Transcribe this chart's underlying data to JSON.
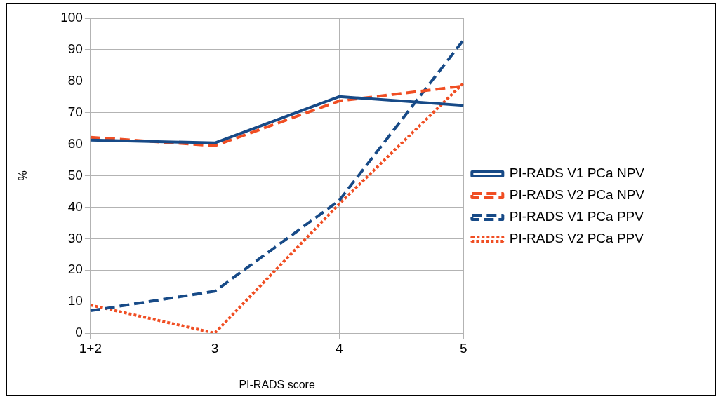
{
  "chart_data": {
    "type": "line",
    "xlabel": "PI-RADS score",
    "ylabel": "%",
    "categories": [
      "1+2",
      "3",
      "4",
      "5"
    ],
    "series": [
      {
        "name": "PI-RADS V1 PCa NPV",
        "color": "#174a87",
        "line_style": "solid",
        "values": [
          61.3,
          60.4,
          75.1,
          72.3
        ]
      },
      {
        "name": "PI-RADS V2 PCa NPV",
        "color": "#f04e23",
        "line_style": "dashed",
        "values": [
          62.2,
          59.5,
          73.7,
          78.5
        ]
      },
      {
        "name": "PI-RADS V1 PCa PPV",
        "color": "#174a87",
        "line_style": "dashed",
        "values": [
          7.1,
          13.3,
          42.1,
          93.1
        ]
      },
      {
        "name": "PI-RADS V2 PCa PPV",
        "color": "#f04e23",
        "line_style": "dotted",
        "values": [
          8.9,
          0,
          41,
          79.4
        ]
      }
    ],
    "ylim": [
      0,
      100
    ],
    "yticks": [
      0,
      10,
      20,
      30,
      40,
      50,
      60,
      70,
      80,
      90,
      100
    ],
    "grid": true,
    "legend": "right",
    "marker": "none"
  }
}
